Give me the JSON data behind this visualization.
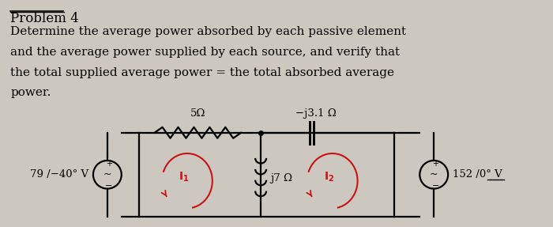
{
  "bg_color": "#ccc8c0",
  "title_text": "Problem 4",
  "body_lines": [
    "Determine the average power absorbed by each passive element",
    "and the average power supplied by each source, and verify that",
    "the total supplied average power = the total absorbed average",
    "power."
  ],
  "font_size_title": 12,
  "font_size_body": 11,
  "font_size_circuit": 9.5,
  "resistor1_label": "5Ω",
  "resistor2_label": "j7 Ω",
  "capacitor_label": "−j3.1 Ω",
  "left_source_label": "79 /−40° V",
  "right_source_label": "152 /0° V",
  "current1_label": "I₁",
  "current2_label": "I₂"
}
